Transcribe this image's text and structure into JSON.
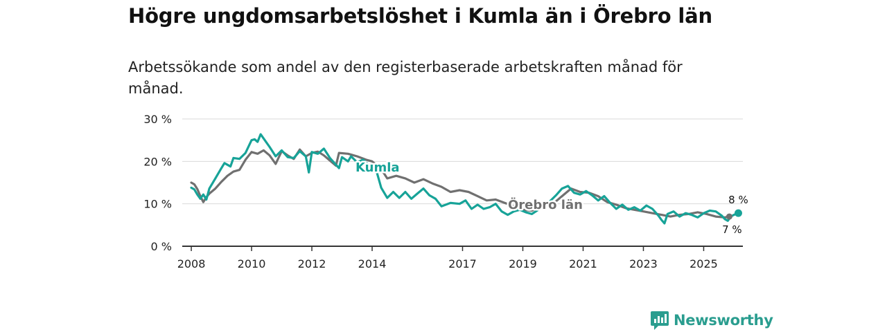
{
  "header": {
    "title": "Högre ungdomsarbetslöshet i Kumla än i Örebro län",
    "subtitle": "Arbetssökande som andel av den registerbaserade arbetskraften månad för månad."
  },
  "colors": {
    "kumla": "#17a398",
    "orebro": "#707070",
    "grid": "#d9d9d9",
    "axis": "#333333",
    "brand": "#2a9d8f"
  },
  "brand": {
    "name": "Newsworthy",
    "icon": "newsworthy-logo-icon"
  },
  "chart_data": {
    "type": "line",
    "title": "Högre ungdomsarbetslöshet i Kumla än i Örebro län",
    "subtitle": "Arbetssökande som andel av den registerbaserade arbetskraften månad för månad.",
    "xlabel": "",
    "ylabel": "",
    "xlim": [
      2007.7,
      2026.3
    ],
    "ylim": [
      0,
      30
    ],
    "yticks": [
      0,
      10,
      20,
      30
    ],
    "ytick_labels": [
      "0 %",
      "10 %",
      "20 %",
      "30 %"
    ],
    "xticks": [
      2008,
      2010,
      2012,
      2014,
      2017,
      2019,
      2021,
      2023,
      2025
    ],
    "xtick_labels": [
      "2008",
      "2010",
      "2012",
      "2014",
      "2017",
      "2019",
      "2021",
      "2023",
      "2025"
    ],
    "grid": true,
    "series": [
      {
        "name": "Örebro län",
        "label": "Örebro län",
        "end_label": "7 %",
        "points": [
          [
            2008.0,
            15.0
          ],
          [
            2008.1,
            14.6
          ],
          [
            2008.2,
            13.5
          ],
          [
            2008.3,
            11.8
          ],
          [
            2008.4,
            10.4
          ],
          [
            2008.5,
            11.6
          ],
          [
            2008.6,
            12.4
          ],
          [
            2008.8,
            13.6
          ],
          [
            2009.0,
            15.2
          ],
          [
            2009.2,
            16.6
          ],
          [
            2009.4,
            17.6
          ],
          [
            2009.6,
            18.0
          ],
          [
            2009.8,
            20.4
          ],
          [
            2010.0,
            22.2
          ],
          [
            2010.2,
            21.8
          ],
          [
            2010.4,
            22.6
          ],
          [
            2010.6,
            21.4
          ],
          [
            2010.8,
            19.4
          ],
          [
            2011.0,
            22.4
          ],
          [
            2011.2,
            21.4
          ],
          [
            2011.4,
            20.6
          ],
          [
            2011.6,
            22.8
          ],
          [
            2011.8,
            21.2
          ],
          [
            2012.0,
            22.0
          ],
          [
            2012.2,
            22.3
          ],
          [
            2012.4,
            21.4
          ],
          [
            2012.6,
            20.2
          ],
          [
            2012.8,
            19.0
          ],
          [
            2012.9,
            22.0
          ],
          [
            2013.2,
            21.8
          ],
          [
            2013.5,
            21.2
          ],
          [
            2013.8,
            20.4
          ],
          [
            2014.0,
            20.0
          ],
          [
            2014.3,
            18.2
          ],
          [
            2014.5,
            16.0
          ],
          [
            2014.8,
            16.6
          ],
          [
            2015.1,
            16.0
          ],
          [
            2015.4,
            15.0
          ],
          [
            2015.7,
            15.8
          ],
          [
            2016.0,
            14.8
          ],
          [
            2016.3,
            14.0
          ],
          [
            2016.6,
            12.8
          ],
          [
            2016.9,
            13.2
          ],
          [
            2017.2,
            12.8
          ],
          [
            2017.5,
            11.8
          ],
          [
            2017.8,
            10.8
          ],
          [
            2018.1,
            11.0
          ],
          [
            2018.4,
            10.2
          ],
          [
            2018.7,
            9.4
          ],
          [
            2019.0,
            8.6
          ],
          [
            2019.3,
            8.4
          ],
          [
            2019.6,
            9.2
          ],
          [
            2020.0,
            10.0
          ],
          [
            2020.3,
            11.8
          ],
          [
            2020.6,
            13.6
          ],
          [
            2020.9,
            12.8
          ],
          [
            2021.2,
            12.6
          ],
          [
            2021.5,
            11.8
          ],
          [
            2021.8,
            10.4
          ],
          [
            2022.1,
            9.8
          ],
          [
            2022.4,
            9.0
          ],
          [
            2022.7,
            8.6
          ],
          [
            2023.0,
            8.2
          ],
          [
            2023.3,
            7.8
          ],
          [
            2023.6,
            7.4
          ],
          [
            2023.9,
            7.0
          ],
          [
            2024.2,
            7.4
          ],
          [
            2024.5,
            7.6
          ],
          [
            2024.8,
            8.0
          ],
          [
            2025.1,
            7.6
          ],
          [
            2025.4,
            7.0
          ],
          [
            2025.7,
            6.8
          ],
          [
            2025.85,
            7.0
          ]
        ]
      },
      {
        "name": "Kumla",
        "label": "Kumla",
        "end_label": "8 %",
        "points": [
          [
            2008.0,
            13.8
          ],
          [
            2008.1,
            13.4
          ],
          [
            2008.2,
            12.2
          ],
          [
            2008.3,
            11.2
          ],
          [
            2008.4,
            12.2
          ],
          [
            2008.5,
            11.0
          ],
          [
            2008.6,
            13.6
          ],
          [
            2008.8,
            16.0
          ],
          [
            2009.0,
            18.4
          ],
          [
            2009.1,
            19.6
          ],
          [
            2009.3,
            18.8
          ],
          [
            2009.4,
            20.8
          ],
          [
            2009.6,
            20.6
          ],
          [
            2009.8,
            22.0
          ],
          [
            2010.0,
            25.0
          ],
          [
            2010.1,
            25.2
          ],
          [
            2010.2,
            24.6
          ],
          [
            2010.3,
            26.4
          ],
          [
            2010.4,
            25.4
          ],
          [
            2010.6,
            23.4
          ],
          [
            2010.8,
            21.2
          ],
          [
            2011.0,
            22.6
          ],
          [
            2011.2,
            21.0
          ],
          [
            2011.4,
            20.8
          ],
          [
            2011.6,
            22.4
          ],
          [
            2011.8,
            21.2
          ],
          [
            2011.9,
            17.4
          ],
          [
            2012.0,
            22.2
          ],
          [
            2012.2,
            21.8
          ],
          [
            2012.4,
            23.0
          ],
          [
            2012.6,
            20.8
          ],
          [
            2012.8,
            19.2
          ],
          [
            2012.9,
            18.4
          ],
          [
            2013.0,
            21.0
          ],
          [
            2013.2,
            20.0
          ],
          [
            2013.3,
            21.2
          ],
          [
            2013.5,
            19.8
          ],
          [
            2013.7,
            20.4
          ],
          [
            2013.9,
            19.0
          ],
          [
            2014.1,
            18.8
          ],
          [
            2014.3,
            13.8
          ],
          [
            2014.5,
            11.4
          ],
          [
            2014.7,
            12.8
          ],
          [
            2014.9,
            11.4
          ],
          [
            2015.1,
            12.8
          ],
          [
            2015.3,
            11.2
          ],
          [
            2015.5,
            12.4
          ],
          [
            2015.7,
            13.6
          ],
          [
            2015.9,
            12.0
          ],
          [
            2016.1,
            11.2
          ],
          [
            2016.3,
            9.4
          ],
          [
            2016.6,
            10.2
          ],
          [
            2016.9,
            10.0
          ],
          [
            2017.1,
            10.8
          ],
          [
            2017.3,
            8.8
          ],
          [
            2017.5,
            9.8
          ],
          [
            2017.7,
            8.8
          ],
          [
            2017.9,
            9.2
          ],
          [
            2018.1,
            10.0
          ],
          [
            2018.3,
            8.2
          ],
          [
            2018.5,
            7.4
          ],
          [
            2018.7,
            8.2
          ],
          [
            2018.9,
            8.6
          ],
          [
            2019.1,
            8.0
          ],
          [
            2019.3,
            7.6
          ],
          [
            2019.6,
            9.0
          ],
          [
            2019.9,
            10.6
          ],
          [
            2020.1,
            12.0
          ],
          [
            2020.3,
            13.6
          ],
          [
            2020.5,
            14.2
          ],
          [
            2020.7,
            12.6
          ],
          [
            2020.9,
            12.2
          ],
          [
            2021.1,
            13.0
          ],
          [
            2021.3,
            12.0
          ],
          [
            2021.5,
            10.8
          ],
          [
            2021.7,
            11.8
          ],
          [
            2021.9,
            10.2
          ],
          [
            2022.1,
            8.8
          ],
          [
            2022.3,
            9.8
          ],
          [
            2022.5,
            8.6
          ],
          [
            2022.7,
            9.2
          ],
          [
            2022.9,
            8.4
          ],
          [
            2023.1,
            9.6
          ],
          [
            2023.3,
            8.8
          ],
          [
            2023.5,
            7.2
          ],
          [
            2023.6,
            6.2
          ],
          [
            2023.7,
            5.4
          ],
          [
            2023.8,
            7.6
          ],
          [
            2024.0,
            8.2
          ],
          [
            2024.2,
            7.0
          ],
          [
            2024.4,
            7.8
          ],
          [
            2024.6,
            7.4
          ],
          [
            2024.8,
            6.8
          ],
          [
            2025.0,
            7.8
          ],
          [
            2025.2,
            8.4
          ],
          [
            2025.4,
            8.2
          ],
          [
            2025.6,
            7.2
          ],
          [
            2025.7,
            6.4
          ],
          [
            2025.8,
            6.0
          ],
          [
            2025.9,
            7.0
          ],
          [
            2026.0,
            7.4
          ],
          [
            2026.15,
            7.8
          ]
        ]
      }
    ]
  }
}
